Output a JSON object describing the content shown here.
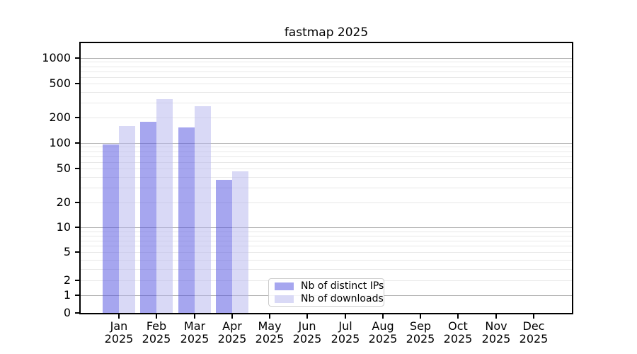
{
  "title": "fastmap 2025",
  "chart_data": {
    "type": "bar",
    "title": "fastmap 2025",
    "xlabel": "",
    "ylabel": "",
    "yscale": "symlog-asinh",
    "ylim": [
      0,
      1500
    ],
    "yticks": [
      0,
      1,
      2,
      5,
      10,
      20,
      50,
      100,
      200,
      500,
      1000
    ],
    "grid": "horizontal major and minor, log-spaced",
    "legend_position": "lower center",
    "categories": [
      "Jan",
      "Feb",
      "Mar",
      "Apr",
      "May",
      "Jun",
      "Jul",
      "Aug",
      "Sep",
      "Oct",
      "Nov",
      "Dec"
    ],
    "category_year": "2025",
    "series": [
      {
        "name": "Nb of distinct IPs",
        "values": [
          96,
          178,
          152,
          37,
          0,
          0,
          0,
          0,
          0,
          0,
          0,
          0
        ],
        "fill": "rgba(77,77,223,0.5)",
        "legend_color": "#a6a6ef"
      },
      {
        "name": "Nb of downloads",
        "values": [
          158,
          330,
          270,
          46,
          0,
          0,
          0,
          0,
          0,
          0,
          0,
          0
        ],
        "fill": "rgba(179,179,237,0.5)",
        "legend_color": "#d9d9f6"
      }
    ]
  },
  "colors": {
    "background": "#ffffff",
    "axis": "#000000",
    "grid_major": "#b0b0b0",
    "grid_minor": "#e8e8e8",
    "text": "#000000",
    "legend_border": "#cccccc"
  }
}
